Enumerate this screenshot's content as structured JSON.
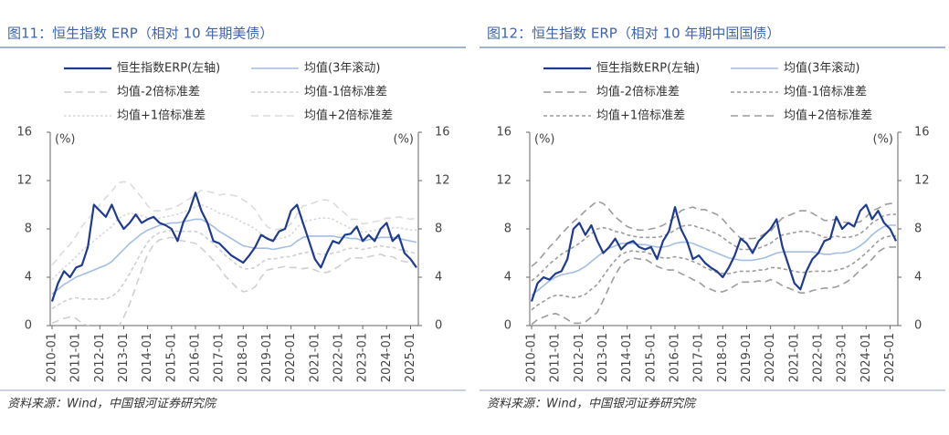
{
  "chart_data": [
    {
      "type": "line",
      "title": "图11：恒生指数 ERP（相对 10 年期美债）",
      "y_unit": "(%)",
      "source": "资料来源：Wind，中国银河证券研究院",
      "x": [
        "2010-01",
        "2010-04",
        "2010-07",
        "2010-10",
        "2011-01",
        "2011-04",
        "2011-07",
        "2011-10",
        "2012-01",
        "2012-04",
        "2012-07",
        "2012-10",
        "2013-01",
        "2013-04",
        "2013-07",
        "2013-10",
        "2014-01",
        "2014-04",
        "2014-07",
        "2014-10",
        "2015-01",
        "2015-04",
        "2015-07",
        "2015-10",
        "2016-01",
        "2016-04",
        "2016-07",
        "2016-10",
        "2017-01",
        "2017-04",
        "2017-07",
        "2017-10",
        "2018-01",
        "2018-04",
        "2018-07",
        "2018-10",
        "2019-01",
        "2019-04",
        "2019-07",
        "2019-10",
        "2020-01",
        "2020-04",
        "2020-07",
        "2020-10",
        "2021-01",
        "2021-04",
        "2021-07",
        "2021-10",
        "2022-01",
        "2022-04",
        "2022-07",
        "2022-10",
        "2023-01",
        "2023-04",
        "2023-07",
        "2023-10",
        "2024-01",
        "2024-04",
        "2024-07",
        "2024-10",
        "2025-01",
        "2025-04"
      ],
      "xticks": [
        "2010-01",
        "2011-01",
        "2012-01",
        "2013-01",
        "2014-01",
        "2015-01",
        "2016-01",
        "2017-01",
        "2018-01",
        "2019-01",
        "2020-01",
        "2021-01",
        "2022-01",
        "2023-01",
        "2024-01",
        "2025-01"
      ],
      "ylim": [
        0,
        16
      ],
      "yticks": [
        0,
        4,
        8,
        12,
        16
      ],
      "y2lim": [
        0,
        16
      ],
      "y2ticks": [
        0,
        4,
        8,
        12,
        16
      ],
      "series": [
        {
          "name": "恒生指数ERP(左轴)",
          "color": "#1f3b8e",
          "line_style": "solid",
          "values": [
            2.0,
            3.5,
            4.5,
            4.0,
            4.8,
            5.0,
            6.5,
            10.0,
            9.5,
            9.0,
            10.0,
            8.8,
            8.0,
            8.5,
            9.2,
            8.5,
            8.8,
            9.0,
            8.5,
            8.3,
            8.0,
            7.0,
            8.6,
            9.5,
            11.0,
            9.5,
            8.5,
            7.0,
            6.8,
            6.3,
            5.8,
            5.5,
            5.2,
            5.8,
            6.5,
            7.5,
            7.2,
            7.0,
            7.8,
            8.0,
            9.5,
            10.0,
            8.5,
            7.0,
            5.5,
            4.8,
            6.0,
            7.0,
            6.8,
            7.5,
            7.6,
            8.2,
            7.0,
            7.5,
            7.0,
            8.0,
            8.5,
            7.0,
            7.5,
            6.0,
            5.5,
            4.8
          ]
        },
        {
          "name": "均值(3年滚动)",
          "color": "#a3bde3",
          "line_style": "solid",
          "values": [
            2.6,
            3.0,
            3.4,
            3.7,
            4.0,
            4.2,
            4.4,
            4.6,
            4.8,
            5.0,
            5.3,
            5.8,
            6.3,
            6.8,
            7.2,
            7.6,
            7.9,
            8.1,
            8.3,
            8.4,
            8.5,
            8.5,
            8.6,
            8.7,
            8.8,
            8.8,
            8.5,
            8.2,
            7.8,
            7.5,
            7.2,
            6.9,
            6.6,
            6.5,
            6.4,
            6.4,
            6.4,
            6.3,
            6.4,
            6.5,
            6.6,
            7.0,
            7.3,
            7.4,
            7.4,
            7.4,
            7.4,
            7.4,
            7.3,
            7.3,
            7.2,
            7.2,
            7.0,
            7.1,
            7.2,
            7.3,
            7.3,
            7.3,
            7.2,
            7.1,
            7.0,
            6.9
          ]
        },
        {
          "name": "均值-2倍标准差",
          "color": "#cfcfcf",
          "line_style": "dashed",
          "values": [
            0.2,
            0.4,
            0.6,
            0.7,
            0.6,
            0.2,
            0.0,
            -0.2,
            -0.4,
            -0.6,
            -0.5,
            -0.2,
            0.7,
            1.8,
            3.2,
            4.6,
            5.9,
            6.7,
            7.1,
            7.2,
            7.3,
            7.1,
            7.0,
            6.9,
            6.8,
            6.4,
            5.9,
            5.4,
            4.8,
            4.1,
            3.6,
            3.1,
            2.8,
            2.9,
            3.2,
            4.0,
            4.6,
            4.7,
            4.8,
            4.9,
            4.8,
            4.8,
            4.7,
            4.8,
            4.6,
            4.4,
            4.4,
            4.6,
            4.9,
            5.3,
            5.6,
            5.6,
            5.6,
            5.7,
            5.8,
            5.9,
            5.7,
            5.7,
            5.4,
            5.3,
            5.2,
            4.9
          ]
        },
        {
          "name": "均值-1倍标准差",
          "color": "#cfcfcf",
          "line_style": "short",
          "values": [
            1.4,
            1.7,
            2.0,
            2.2,
            2.3,
            2.2,
            2.2,
            2.2,
            2.2,
            2.2,
            2.4,
            2.8,
            3.5,
            4.3,
            5.2,
            6.1,
            6.9,
            7.4,
            7.7,
            7.8,
            7.9,
            7.8,
            7.8,
            7.8,
            7.8,
            7.6,
            7.2,
            6.8,
            6.3,
            5.8,
            5.4,
            5.0,
            4.7,
            4.7,
            4.8,
            5.2,
            5.5,
            5.5,
            5.6,
            5.7,
            5.7,
            5.9,
            6.0,
            6.1,
            6.0,
            5.9,
            5.9,
            6.0,
            6.1,
            6.3,
            6.4,
            6.4,
            6.3,
            6.4,
            6.5,
            6.6,
            6.5,
            6.5,
            6.3,
            6.2,
            6.1,
            5.9
          ]
        },
        {
          "name": "均值+1倍标准差",
          "color": "#d6d6d6",
          "line_style": "dotted",
          "values": [
            3.8,
            4.3,
            4.8,
            5.2,
            5.7,
            6.2,
            6.6,
            7.0,
            7.4,
            7.8,
            8.2,
            8.8,
            9.1,
            9.3,
            9.2,
            9.1,
            8.9,
            8.8,
            8.9,
            9.0,
            9.1,
            9.2,
            9.4,
            9.6,
            9.8,
            10.0,
            9.8,
            9.6,
            9.3,
            9.2,
            9.0,
            8.8,
            8.5,
            8.3,
            8.0,
            7.6,
            7.3,
            7.1,
            7.2,
            7.3,
            7.5,
            8.1,
            8.6,
            8.7,
            8.8,
            8.9,
            8.9,
            8.8,
            8.5,
            8.3,
            8.0,
            8.0,
            7.7,
            7.8,
            7.9,
            8.0,
            8.1,
            8.1,
            8.1,
            8.0,
            7.9,
            7.9
          ]
        },
        {
          "name": "均值+2倍标准差",
          "color": "#dcdcdc",
          "line_style": "dashed",
          "values": [
            5.0,
            5.6,
            6.2,
            6.7,
            7.4,
            8.2,
            8.8,
            9.4,
            10.0,
            10.6,
            11.1,
            11.8,
            11.9,
            11.8,
            11.2,
            10.6,
            9.9,
            9.5,
            9.5,
            9.6,
            9.7,
            9.9,
            10.2,
            10.5,
            10.8,
            11.2,
            11.1,
            11.0,
            10.8,
            10.9,
            10.8,
            10.7,
            10.4,
            10.1,
            9.6,
            8.8,
            8.2,
            7.9,
            8.0,
            8.1,
            8.4,
            9.2,
            9.9,
            10.0,
            10.2,
            10.4,
            10.4,
            10.2,
            9.7,
            9.3,
            8.8,
            8.8,
            8.4,
            8.5,
            8.6,
            8.7,
            8.9,
            8.9,
            9.0,
            8.9,
            8.8,
            8.9
          ]
        }
      ]
    },
    {
      "type": "line",
      "title": "图12：恒生指数 ERP（相对 10 年期中国国债）",
      "y_unit": "(%)",
      "source": "资料来源：Wind，中国银河证券研究院",
      "x": [
        "2010-01",
        "2010-04",
        "2010-07",
        "2010-10",
        "2011-01",
        "2011-04",
        "2011-07",
        "2011-10",
        "2012-01",
        "2012-04",
        "2012-07",
        "2012-10",
        "2013-01",
        "2013-04",
        "2013-07",
        "2013-10",
        "2014-01",
        "2014-04",
        "2014-07",
        "2014-10",
        "2015-01",
        "2015-04",
        "2015-07",
        "2015-10",
        "2016-01",
        "2016-04",
        "2016-07",
        "2016-10",
        "2017-01",
        "2017-04",
        "2017-07",
        "2017-10",
        "2018-01",
        "2018-04",
        "2018-07",
        "2018-10",
        "2019-01",
        "2019-04",
        "2019-07",
        "2019-10",
        "2020-01",
        "2020-04",
        "2020-07",
        "2020-10",
        "2021-01",
        "2021-04",
        "2021-07",
        "2021-10",
        "2022-01",
        "2022-04",
        "2022-07",
        "2022-10",
        "2023-01",
        "2023-04",
        "2023-07",
        "2023-10",
        "2024-01",
        "2024-04",
        "2024-07",
        "2024-10",
        "2025-01",
        "2025-04"
      ],
      "xticks": [
        "2010-01",
        "2011-01",
        "2012-01",
        "2013-01",
        "2014-01",
        "2015-01",
        "2016-01",
        "2017-01",
        "2018-01",
        "2019-01",
        "2020-01",
        "2021-01",
        "2022-01",
        "2023-01",
        "2024-01",
        "2025-01"
      ],
      "ylim": [
        0,
        16
      ],
      "yticks": [
        0,
        4,
        8,
        12,
        16
      ],
      "y2lim": [
        0,
        16
      ],
      "y2ticks": [
        0,
        4,
        8,
        12,
        16
      ],
      "series": [
        {
          "name": "恒生指数ERP(左轴)",
          "color": "#1f3b8e",
          "line_style": "solid",
          "values": [
            2.0,
            3.5,
            4.0,
            3.8,
            4.3,
            4.5,
            5.5,
            8.0,
            8.5,
            7.5,
            8.3,
            7.0,
            6.0,
            6.5,
            7.2,
            6.3,
            6.8,
            7.0,
            6.5,
            6.3,
            6.5,
            5.5,
            7.0,
            7.8,
            9.8,
            8.0,
            7.0,
            5.5,
            5.8,
            5.2,
            4.8,
            4.5,
            4.0,
            4.8,
            5.8,
            7.2,
            6.8,
            6.0,
            7.0,
            7.5,
            8.0,
            8.8,
            6.5,
            5.0,
            3.5,
            3.0,
            4.5,
            5.5,
            6.0,
            7.0,
            7.2,
            9.0,
            8.0,
            8.5,
            8.2,
            9.5,
            10.0,
            8.8,
            9.5,
            8.5,
            8.0,
            7.0
          ]
        },
        {
          "name": "均值(3年滚动)",
          "color": "#a3bde3",
          "line_style": "solid",
          "values": [
            2.5,
            2.9,
            3.3,
            3.7,
            4.0,
            4.2,
            4.3,
            4.4,
            4.6,
            4.9,
            5.3,
            5.7,
            6.1,
            6.4,
            6.6,
            6.8,
            6.8,
            6.8,
            6.7,
            6.7,
            6.6,
            6.5,
            6.5,
            6.6,
            6.8,
            6.9,
            6.9,
            6.8,
            6.6,
            6.4,
            6.2,
            6.0,
            5.8,
            5.6,
            5.5,
            5.4,
            5.4,
            5.4,
            5.5,
            5.6,
            5.8,
            6.0,
            6.1,
            6.1,
            6.1,
            6.1,
            6.1,
            6.1,
            6.0,
            5.9,
            5.9,
            6.0,
            6.0,
            6.1,
            6.3,
            6.6,
            7.0,
            7.5,
            7.9,
            8.2,
            8.3,
            8.3
          ]
        },
        {
          "name": "均值-2倍标准差",
          "color": "#9c9c9c",
          "line_style": "dashed",
          "values": [
            0.1,
            0.5,
            0.7,
            0.9,
            1.0,
            0.8,
            0.5,
            0.2,
            0.2,
            0.3,
            0.7,
            1.1,
            2.1,
            3.2,
            4.2,
            5.0,
            5.4,
            5.6,
            5.5,
            5.5,
            5.2,
            4.9,
            4.7,
            4.6,
            4.6,
            4.3,
            4.1,
            3.8,
            3.6,
            3.2,
            3.0,
            2.8,
            2.8,
            3.0,
            3.3,
            3.6,
            3.6,
            3.6,
            3.7,
            3.6,
            3.8,
            3.6,
            3.3,
            3.1,
            2.9,
            2.7,
            2.7,
            2.9,
            3.0,
            3.1,
            3.1,
            3.2,
            3.4,
            3.7,
            4.1,
            4.6,
            5.0,
            5.5,
            6.1,
            6.4,
            6.5,
            6.5
          ]
        },
        {
          "name": "均值-1倍标准差",
          "color": "#9c9c9c",
          "line_style": "short",
          "values": [
            1.3,
            1.7,
            2.0,
            2.3,
            2.5,
            2.5,
            2.4,
            2.3,
            2.4,
            2.6,
            3.0,
            3.4,
            4.1,
            4.8,
            5.4,
            5.9,
            6.1,
            6.2,
            6.1,
            6.1,
            5.9,
            5.7,
            5.6,
            5.6,
            5.7,
            5.6,
            5.5,
            5.3,
            5.1,
            4.8,
            4.6,
            4.4,
            4.3,
            4.3,
            4.4,
            4.5,
            4.5,
            4.5,
            4.6,
            4.6,
            4.8,
            4.8,
            4.7,
            4.6,
            4.5,
            4.4,
            4.4,
            4.5,
            4.5,
            4.5,
            4.5,
            4.6,
            4.7,
            4.9,
            5.2,
            5.6,
            6.0,
            6.5,
            7.0,
            7.3,
            7.4,
            7.4
          ]
        },
        {
          "name": "均值+1倍标准差",
          "color": "#9c9c9c",
          "line_style": "short",
          "values": [
            3.7,
            4.1,
            4.6,
            5.1,
            5.5,
            5.9,
            6.2,
            6.5,
            6.8,
            7.2,
            7.6,
            8.0,
            8.1,
            8.0,
            7.8,
            7.7,
            7.5,
            7.4,
            7.3,
            7.3,
            7.3,
            7.3,
            7.4,
            7.6,
            7.9,
            8.2,
            8.3,
            8.3,
            8.1,
            8.0,
            7.8,
            7.6,
            7.3,
            6.9,
            6.6,
            6.3,
            6.3,
            6.3,
            6.4,
            6.6,
            6.8,
            7.2,
            7.5,
            7.6,
            7.7,
            7.8,
            7.8,
            7.7,
            7.5,
            7.3,
            7.3,
            7.4,
            7.3,
            7.3,
            7.4,
            7.6,
            8.0,
            8.5,
            8.8,
            9.1,
            9.2,
            9.2
          ]
        },
        {
          "name": "均值+2倍标准差",
          "color": "#9c9c9c",
          "line_style": "dashed",
          "values": [
            4.9,
            5.3,
            5.9,
            6.5,
            7.0,
            7.6,
            8.1,
            8.6,
            9.0,
            9.5,
            9.9,
            10.3,
            10.1,
            9.6,
            9.0,
            8.6,
            8.2,
            8.0,
            7.9,
            7.9,
            8.0,
            8.1,
            8.3,
            8.6,
            9.0,
            9.5,
            9.7,
            9.8,
            9.6,
            9.6,
            9.4,
            9.2,
            8.8,
            8.2,
            7.7,
            7.2,
            7.2,
            7.2,
            7.3,
            7.6,
            7.8,
            8.4,
            8.9,
            9.1,
            9.3,
            9.5,
            9.5,
            9.3,
            9.0,
            8.7,
            8.7,
            8.8,
            8.6,
            8.5,
            8.5,
            8.6,
            9.0,
            9.5,
            9.7,
            10.0,
            10.1,
            10.1
          ]
        }
      ]
    }
  ]
}
